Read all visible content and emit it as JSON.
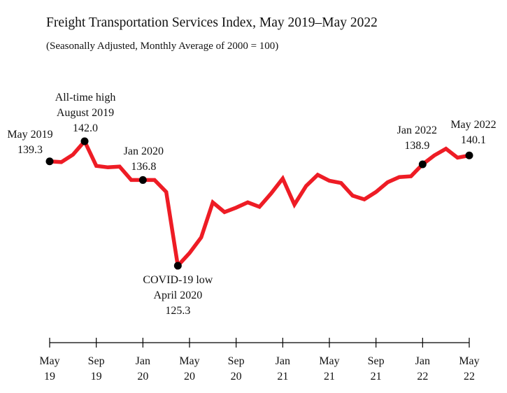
{
  "chart_data": {
    "type": "line",
    "title": "Freight Transportation Services Index, May 2019–May 2022",
    "subtitle": "(Seasonally Adjusted, Monthly Average of 2000 = 100)",
    "xlabel": "",
    "ylabel": "",
    "grid": false,
    "line_color": "#ee1c25",
    "x": [
      "2019-05",
      "2019-06",
      "2019-07",
      "2019-08",
      "2019-09",
      "2019-10",
      "2019-11",
      "2019-12",
      "2020-01",
      "2020-02",
      "2020-03",
      "2020-04",
      "2020-05",
      "2020-06",
      "2020-07",
      "2020-08",
      "2020-09",
      "2020-10",
      "2020-11",
      "2020-12",
      "2021-01",
      "2021-02",
      "2021-03",
      "2021-04",
      "2021-05",
      "2021-06",
      "2021-07",
      "2021-08",
      "2021-09",
      "2021-10",
      "2021-11",
      "2021-12",
      "2022-01",
      "2022-02",
      "2022-03",
      "2022-04",
      "2022-05"
    ],
    "values": [
      139.3,
      139.2,
      140.2,
      142.0,
      138.7,
      138.5,
      138.6,
      136.8,
      136.8,
      136.8,
      135.2,
      125.3,
      127.0,
      129.1,
      133.8,
      132.5,
      133.1,
      133.8,
      133.2,
      135.0,
      137.0,
      133.5,
      136.0,
      137.5,
      136.7,
      136.4,
      134.7,
      134.2,
      135.2,
      136.5,
      137.2,
      137.3,
      138.9,
      140.1,
      141.0,
      139.8,
      140.1
    ],
    "x_ticks": [
      {
        "month": "May",
        "year": "19"
      },
      {
        "month": "Sep",
        "year": "19"
      },
      {
        "month": "Jan",
        "year": "20"
      },
      {
        "month": "May",
        "year": "20"
      },
      {
        "month": "Sep",
        "year": "20"
      },
      {
        "month": "Jan",
        "year": "21"
      },
      {
        "month": "May",
        "year": "21"
      },
      {
        "month": "Sep",
        "year": "21"
      },
      {
        "month": "Jan",
        "year": "22"
      },
      {
        "month": "May",
        "year": "22"
      }
    ],
    "annotations": [
      {
        "index": 0,
        "lines": [
          "May 2019",
          "139.3"
        ]
      },
      {
        "index": 3,
        "lines": [
          "All-time high",
          "August 2019",
          "142.0"
        ]
      },
      {
        "index": 8,
        "lines": [
          "Jan 2020",
          "136.8"
        ]
      },
      {
        "index": 11,
        "lines": [
          "COVID-19 low",
          "April 2020",
          "125.3"
        ]
      },
      {
        "index": 32,
        "lines": [
          "Jan 2022",
          "138.9"
        ]
      },
      {
        "index": 36,
        "lines": [
          "May 2022",
          "140.1"
        ]
      }
    ]
  }
}
